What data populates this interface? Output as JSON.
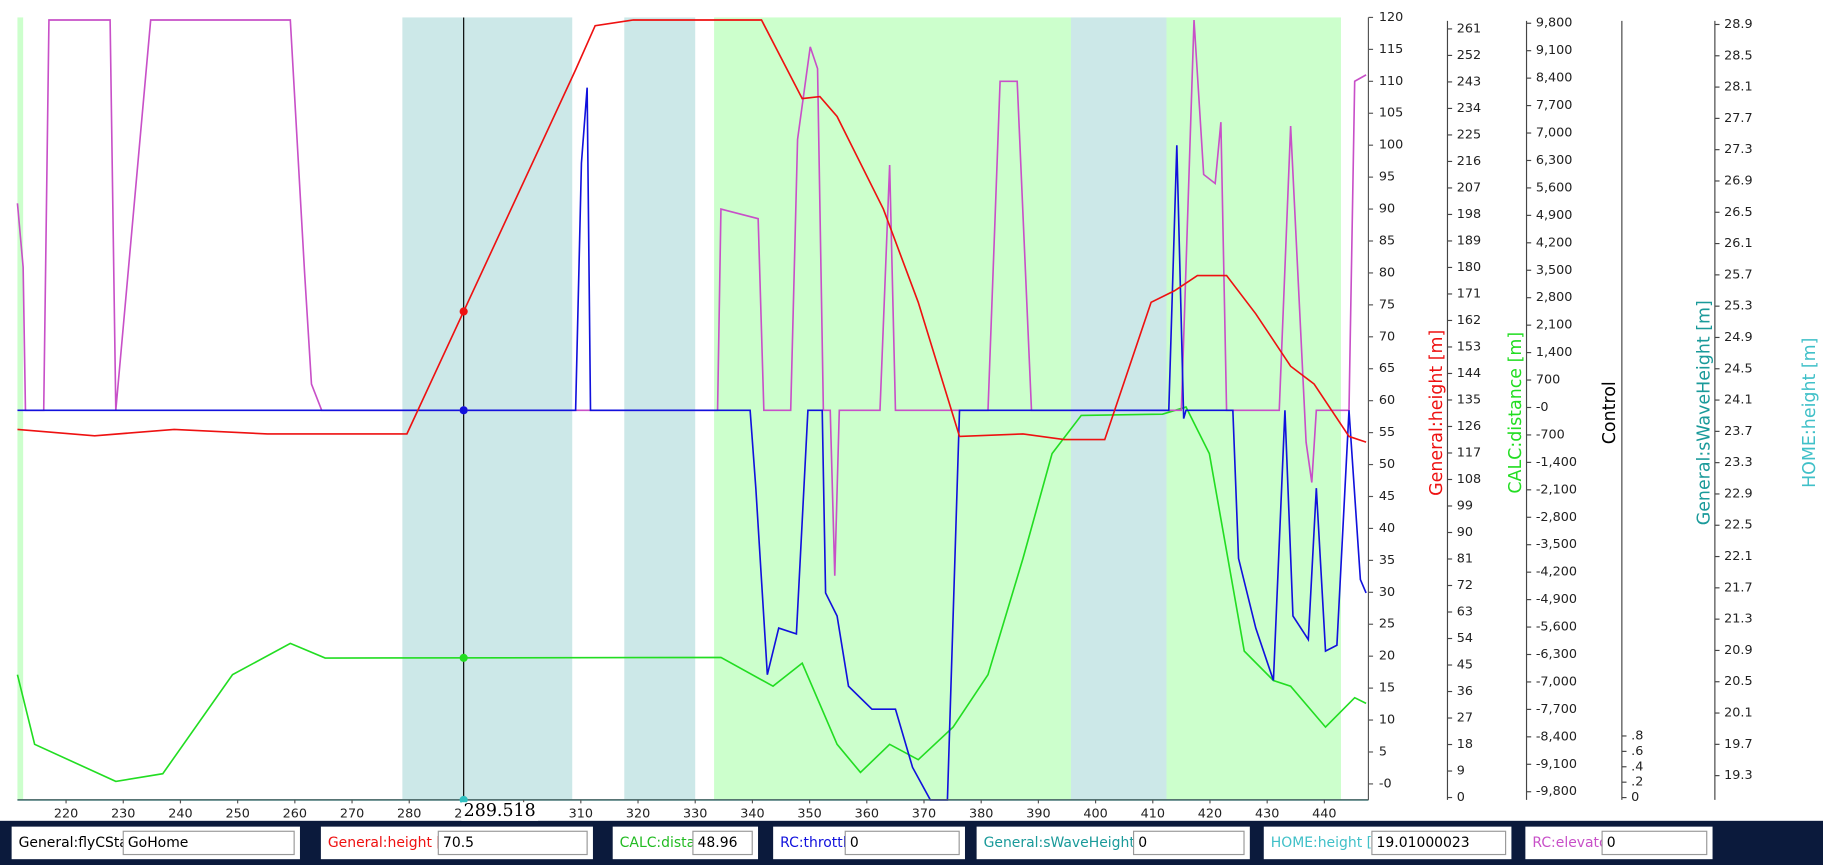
{
  "chart_data": {
    "type": "line",
    "xlim": [
      211.5,
      447.7
    ],
    "xticks": [
      220,
      230,
      240,
      250,
      260,
      270,
      280,
      290,
      300,
      310,
      320,
      330,
      340,
      350,
      360,
      370,
      380,
      390,
      400,
      410,
      420,
      430,
      440
    ],
    "ylim": [
      -2.5,
      120
    ],
    "yticks": [
      120,
      115,
      110,
      105,
      100,
      95,
      90,
      85,
      80,
      75,
      70,
      65,
      60,
      55,
      50,
      45,
      40,
      35,
      30,
      25,
      20,
      15,
      10,
      5,
      {
        "value": 0,
        "label": "-0"
      }
    ],
    "axes": [
      {
        "title": "General:height [m]",
        "color": "#ee1111",
        "ylim": [
          -0.8,
          264.9
        ],
        "yticks": [
          261,
          252,
          243,
          234,
          225,
          216,
          207,
          198,
          189,
          180,
          171,
          162,
          153,
          144,
          135,
          126,
          117,
          108,
          99,
          90,
          81,
          72,
          63,
          54,
          45,
          36,
          27,
          18,
          9,
          0
        ]
      },
      {
        "title": "CALC:distance [m]",
        "color": "#22dd22",
        "ylim": [
          -10008,
          9948
        ],
        "yticks": [
          {
            "value": 9800,
            "label": "9,800"
          },
          {
            "value": 9100,
            "label": "9,100"
          },
          {
            "value": 8400,
            "label": "8,400"
          },
          {
            "value": 7700,
            "label": "7,700"
          },
          {
            "value": 7000,
            "label": "7,000"
          },
          {
            "value": 6300,
            "label": "6,300"
          },
          {
            "value": 5600,
            "label": "5,600"
          },
          {
            "value": 4900,
            "label": "4,900"
          },
          {
            "value": 4200,
            "label": "4,200"
          },
          {
            "value": 3500,
            "label": "3,500"
          },
          {
            "value": 2800,
            "label": "2,800"
          },
          {
            "value": 2100,
            "label": "2,100"
          },
          {
            "value": 1400,
            "label": "1,400"
          },
          700,
          {
            "value": 0,
            "label": "-0"
          },
          -700,
          {
            "value": -1400,
            "label": "-1,400"
          },
          {
            "value": -2100,
            "label": "-2,100"
          },
          {
            "value": -2800,
            "label": "-2,800"
          },
          {
            "value": -3500,
            "label": "-3,500"
          },
          {
            "value": -4200,
            "label": "-4,200"
          },
          {
            "value": -4900,
            "label": "-4,900"
          },
          {
            "value": -5600,
            "label": "-5,600"
          },
          {
            "value": -6300,
            "label": "-6,300"
          },
          {
            "value": -7000,
            "label": "-7,000"
          },
          {
            "value": -7700,
            "label": "-7,700"
          },
          {
            "value": -8400,
            "label": "-8,400"
          },
          {
            "value": -9100,
            "label": "-9,100"
          },
          {
            "value": -9800,
            "label": "-9,800"
          }
        ]
      },
      {
        "title": "Control",
        "color": "#000000",
        "ylim": [
          -0.03,
          10.13
        ],
        "yticks": [
          {
            "value": 0.8,
            "label": ".8"
          },
          {
            "value": 0.6,
            "label": ".6"
          },
          {
            "value": 0.4,
            "label": ".4"
          },
          {
            "value": 0.2,
            "label": ".2"
          },
          0
        ]
      },
      {
        "title": "General:sWaveHeight [m]",
        "color": "#1a9a9a",
        "ylim": [
          18.99,
          28.99
        ],
        "yticks": [
          28.9,
          28.5,
          28.1,
          27.7,
          27.3,
          26.9,
          26.5,
          26.1,
          25.7,
          25.3,
          24.9,
          24.5,
          24.1,
          23.7,
          23.3,
          22.9,
          22.5,
          22.1,
          21.7,
          21.3,
          20.9,
          20.5,
          20.1,
          19.7,
          19.3
        ]
      },
      {
        "title": "HOME:height [m]",
        "color": "#40c0c8",
        "ylim": [
          0,
          1
        ],
        "yticks": []
      }
    ],
    "bands": [
      {
        "start": 211.5,
        "end": 212.5,
        "color": "#ccffcc"
      },
      {
        "start": 278.8,
        "end": 308.5,
        "color": "#cce8e8"
      },
      {
        "start": 317.6,
        "end": 330,
        "color": "#cce8e8"
      },
      {
        "start": 333.3,
        "end": 395.7,
        "color": "#ccffcc"
      },
      {
        "start": 395.7,
        "end": 412.4,
        "color": "#cce8e8"
      },
      {
        "start": 412.4,
        "end": 442.9,
        "color": "#ccffcc"
      }
    ],
    "series": [
      {
        "color": "#30c0c0",
        "x": [
          211.5,
          447.7
        ],
        "values": [
          -2.5,
          -2.5
        ]
      },
      {
        "color": "#22dd22",
        "x": [
          211.5,
          214.5,
          228.7,
          236.9,
          249.1,
          259.2,
          265.3,
          334.5,
          343.6,
          348.7,
          354.8,
          358.9,
          364,
          369,
          375.1,
          381.2,
          387.3,
          392.4,
          397.5,
          411.7,
          415.8,
          419.9,
          426,
          431.1,
          434.1,
          440.2,
          445.3,
          447.3
        ],
        "values": [
          17.1,
          6.2,
          0.4,
          1.6,
          17.1,
          22,
          19.7,
          19.8,
          15.3,
          18.9,
          6.2,
          1.8,
          6.2,
          3.8,
          8.9,
          17.1,
          35.3,
          51.7,
          57.7,
          57.9,
          59,
          51.7,
          20.8,
          16.2,
          15.3,
          8.9,
          13.5,
          12.6
        ]
      },
      {
        "color": "#c850c8",
        "x": [
          211.5,
          212.5,
          212.9,
          216.1,
          217,
          227.7,
          228.7,
          234.8,
          259.2,
          261.7,
          262.9,
          264.7,
          333.9,
          334.5,
          341,
          342,
          346.7,
          347.9,
          350.1,
          351.4,
          352.4,
          353.6,
          354.4,
          355.2,
          362.3,
          364,
          365,
          381.2,
          383.3,
          386.3,
          388.8,
          415,
          417.2,
          418.9,
          420.9,
          421.9,
          422.9,
          424,
          426,
          432.1,
          434.1,
          436.8,
          437.8,
          438.6,
          444.3,
          445.3,
          447.3
        ],
        "values": [
          90.9,
          80.9,
          58.5,
          58.5,
          119.6,
          119.6,
          58.5,
          119.6,
          119.6,
          80,
          62.6,
          58.5,
          58.5,
          90,
          88.5,
          58.5,
          58.5,
          100.9,
          115.4,
          112,
          58.5,
          58.5,
          32.6,
          58.5,
          58.5,
          96.9,
          58.5,
          58.5,
          110,
          110,
          58.5,
          58.5,
          119.6,
          95.4,
          94,
          103.6,
          58.5,
          58.5,
          58.5,
          58.5,
          103,
          53.5,
          47.2,
          58.5,
          58.5,
          110,
          111
        ]
      },
      {
        "color": "#1111dd",
        "x": [
          211.5,
          309.1,
          310.1,
          311.1,
          311.7,
          339.6,
          340.6,
          342.6,
          344.6,
          347.7,
          349.7,
          352.2,
          352.8,
          354.8,
          356.8,
          360.9,
          365,
          368,
          371.1,
          374.1,
          376.2,
          412.8,
          414.2,
          415.4,
          415.8,
          424,
          425,
          428,
          431.1,
          433.1,
          434.5,
          437.2,
          438.6,
          440.2,
          442.2,
          444.3,
          446.3,
          447.3
        ],
        "values": [
          58.5,
          58.5,
          97.2,
          109,
          58.5,
          58.5,
          46.3,
          17.1,
          24.4,
          23.5,
          58.5,
          58.5,
          29.9,
          26.3,
          15.3,
          11.7,
          11.7,
          2.6,
          -2.5,
          -2.5,
          58.5,
          58.5,
          100,
          57.2,
          58.5,
          58.5,
          35.3,
          24.4,
          16.2,
          58.5,
          26.3,
          22.6,
          46.3,
          20.8,
          21.7,
          58.5,
          32,
          29.9
        ]
      },
      {
        "color": "#ee1111",
        "x": [
          211.5,
          225,
          238.9,
          255.2,
          279.6,
          309.1,
          312.5,
          319.2,
          341.6,
          348.7,
          351.8,
          354.8,
          362.9,
          369,
          376.2,
          387.3,
          394.5,
          401.6,
          409.7,
          413.8,
          417.8,
          422.9,
          428,
          434.1,
          438.2,
          444.3,
          447.3
        ],
        "values": [
          55.5,
          54.5,
          55.5,
          54.8,
          54.8,
          111.8,
          118.7,
          119.6,
          119.6,
          107.3,
          107.6,
          104.5,
          90,
          75.4,
          54.4,
          54.8,
          53.9,
          53.9,
          75.4,
          77.2,
          79.6,
          79.6,
          73.6,
          65.4,
          62.6,
          54.4,
          53.5
        ]
      }
    ],
    "cursor": {
      "x": 289.518
    }
  },
  "status_bar": {
    "fields": [
      {
        "label": "General:flyCState",
        "value": "GoHome",
        "color": "#000000"
      },
      {
        "label": "General:height [m]",
        "value": "70.5",
        "color": "#ee1111"
      },
      {
        "label": "CALC:distance [m]",
        "value": "48.96",
        "color": "#22bb22"
      },
      {
        "label": "RC:throttle",
        "value": "0",
        "color": "#1111dd"
      },
      {
        "label": "General:sWaveHeight [m]",
        "value": "0",
        "color": "#1a9a9a"
      },
      {
        "label": "HOME:height [m]",
        "value": "19.01000023",
        "color": "#40c0c8"
      },
      {
        "label": "RC:elevator",
        "value": "0",
        "color": "#c850c8"
      }
    ]
  }
}
